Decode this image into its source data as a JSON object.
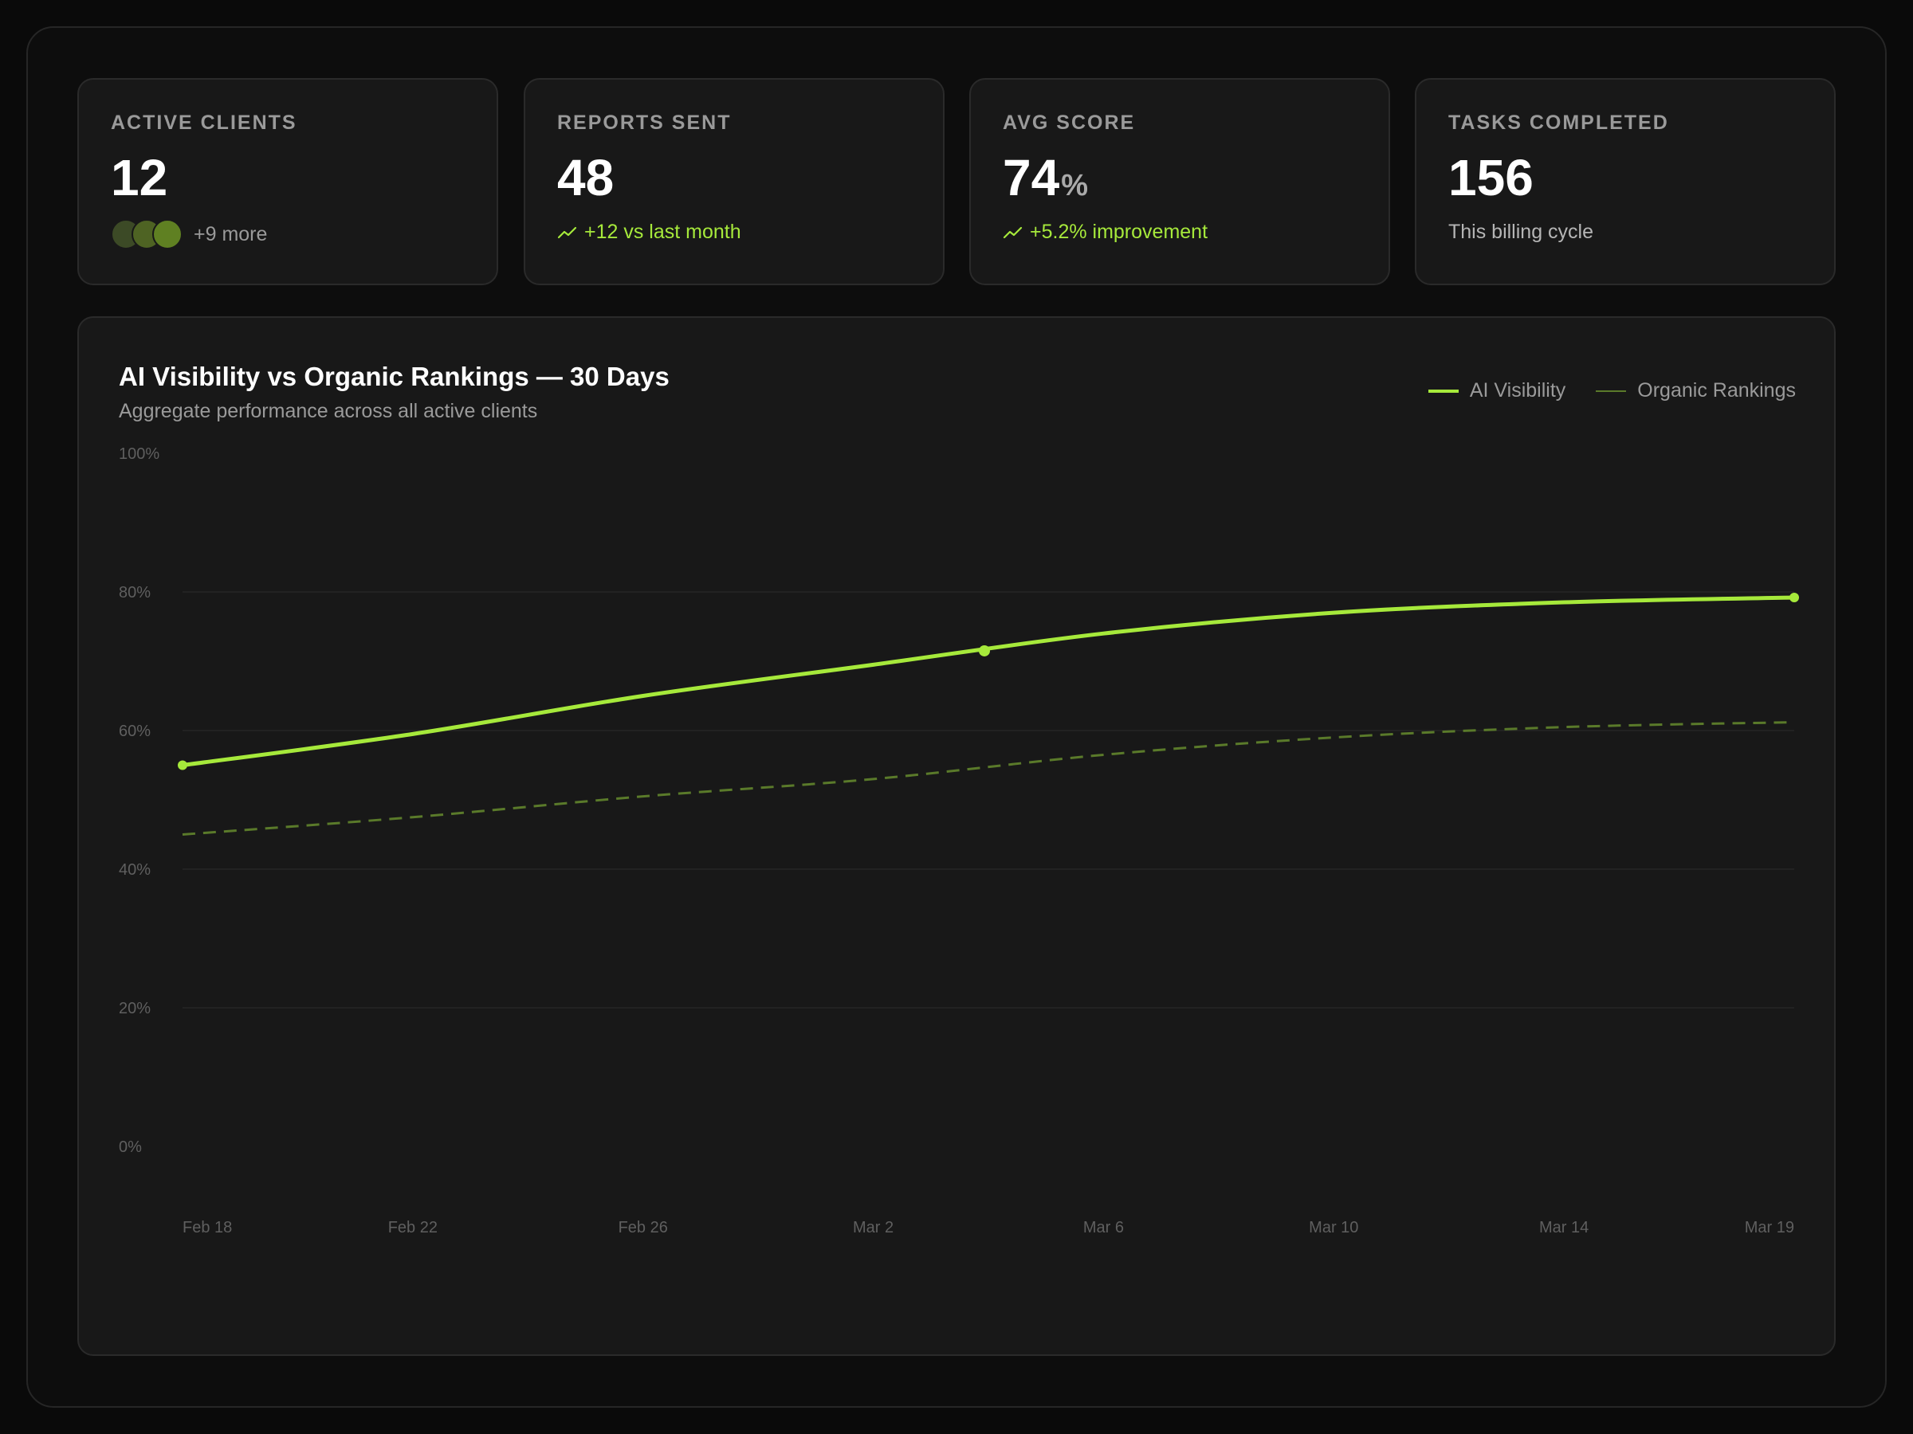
{
  "stats": [
    {
      "label": "ACTIVE CLIENTS",
      "value": "12",
      "sub": "+9 more"
    },
    {
      "label": "REPORTS SENT",
      "value": "48",
      "sub": "+12 vs last month"
    },
    {
      "label": "AVG SCORE",
      "value": "74",
      "unit": "%",
      "sub": "+5.2% improvement"
    },
    {
      "label": "TASKS COMPLETED",
      "value": "156",
      "sub": "This billing cycle"
    }
  ],
  "avatars": [
    "#3c4a26",
    "#4e6323",
    "#5f8022"
  ],
  "icons": {
    "trend": "trending-up-icon"
  },
  "colors": {
    "accent": "#a6e93b",
    "organic": "#5a7a2a"
  },
  "chart_data": {
    "type": "line",
    "title": "AI Visibility vs Organic Rankings — 30 Days",
    "subtitle": "Aggregate performance across all active clients",
    "legend_position": "top-right",
    "ylim": [
      0,
      100
    ],
    "yticks": [
      "0%",
      "20%",
      "40%",
      "60%",
      "80%",
      "100%"
    ],
    "y_tick_values": [
      0,
      20,
      40,
      60,
      80,
      100
    ],
    "xticks": [
      "Feb 18",
      "Feb 22",
      "Feb 26",
      "Mar 2",
      "Mar 6",
      "Mar 10",
      "Mar 14",
      "Mar 19"
    ],
    "x": [
      "Feb 18",
      "Feb 22",
      "Feb 26",
      "Mar 2",
      "Mar 6",
      "Mar 10",
      "Mar 14",
      "Mar 19"
    ],
    "series": [
      {
        "name": "AI Visibility",
        "values": [
          55,
          59.5,
          65,
          69.5,
          74,
          77,
          78.5,
          79.2
        ],
        "highlight": "Mar 4"
      },
      {
        "name": "Organic Rankings",
        "values": [
          45,
          47.5,
          50.5,
          53,
          56.5,
          59,
          60.5,
          61.2
        ]
      }
    ]
  }
}
